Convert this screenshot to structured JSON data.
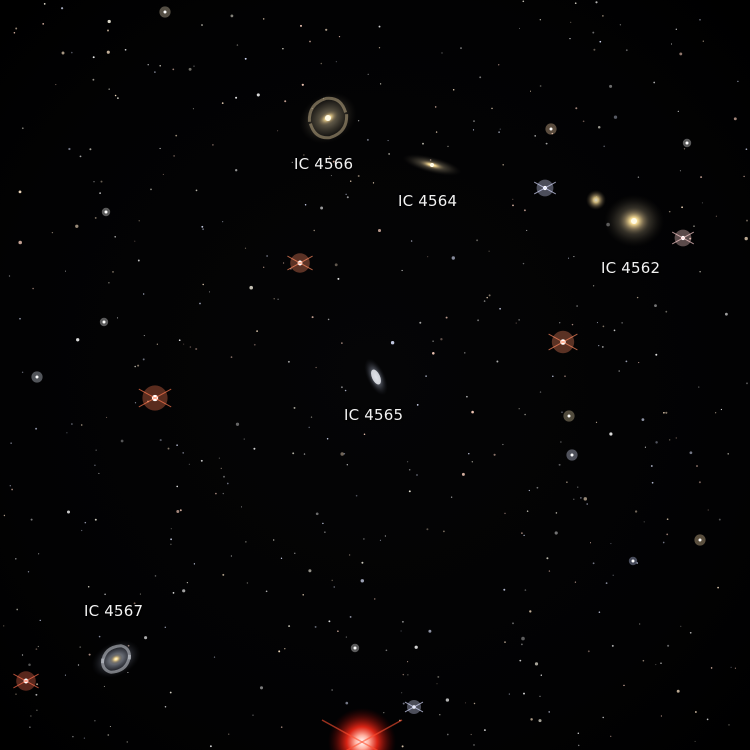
{
  "galaxies": [
    {
      "id": "ic4566",
      "label": "IC 4566",
      "kind": "spiral"
    },
    {
      "id": "ic4564",
      "label": "IC 4564",
      "kind": "edge-on"
    },
    {
      "id": "ic4562",
      "label": "IC 4562",
      "kind": "elliptical"
    },
    {
      "id": "ic4565",
      "label": "IC 4565",
      "kind": "lenticular"
    },
    {
      "id": "ic4567",
      "label": "IC 4567",
      "kind": "spiral"
    }
  ],
  "colors": {
    "background": "#000000",
    "label": "#f2f2f2",
    "galaxy_core": "#fff4c8",
    "galaxy_halo": "#c9b48a",
    "red_star": "#ff4020",
    "blue_star": "#c8d4ff"
  }
}
